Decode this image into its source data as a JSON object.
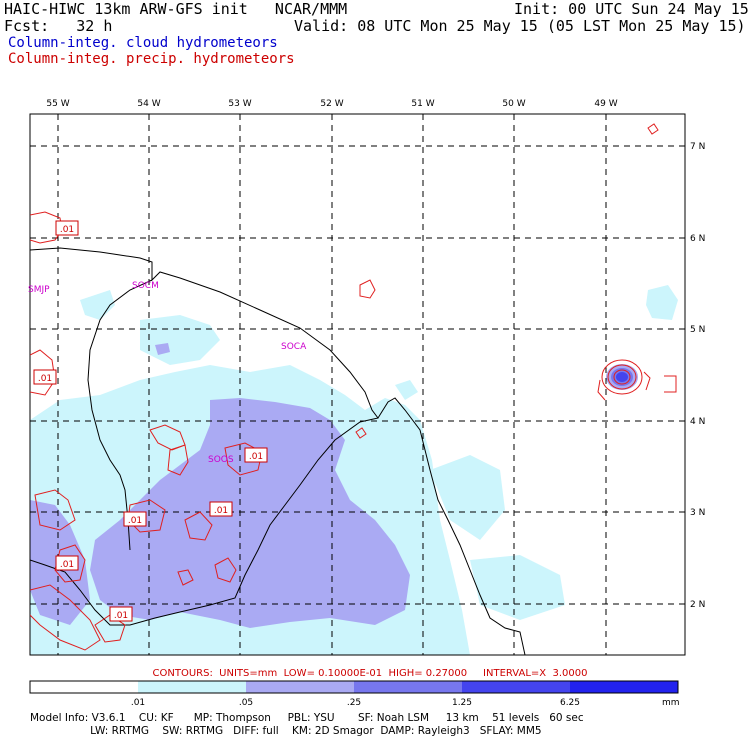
{
  "header": {
    "title": "HAIC-HIWC 13km ARW-GFS init   NCAR/MMM",
    "init": "Init: 00 UTC Sun 24 May 15",
    "fcst": "Fcst:   32 h",
    "valid": "Valid: 08 UTC Mon 25 May 15 (05 LST Mon 25 May 15)",
    "field1": "Column-integ. cloud hydrometeors",
    "field2": "Column-integ. precip. hydrometeors",
    "field1_color": "#0000cc",
    "field2_color": "#cc0000"
  },
  "map": {
    "lon_labels": [
      "55 W",
      "54 W",
      "53 W",
      "52 W",
      "51 W",
      "50 W",
      "49 W"
    ],
    "lat_labels": [
      "7 N",
      "6 N",
      "5 N",
      "4 N",
      "3 N",
      "2 N"
    ],
    "stations": [
      "SMJP",
      "SOCM",
      "SOCA",
      "SOOS"
    ],
    "contour_labels": [
      ".01",
      ".01",
      ".01",
      ".01",
      ".01",
      ".01",
      ".01"
    ],
    "shade_colors": [
      "#ffffff",
      "#ccf5fc",
      "#aaaaf3",
      "#7777ee",
      "#4444ee",
      "#2222ee"
    ]
  },
  "contours_line": "CONTOURS:  UNITS=mm  LOW= 0.10000E-01  HIGH= 0.27000     INTERVAL=X  3.0000",
  "colorbar": {
    "ticks": [
      ".01",
      ".05",
      ".25",
      "1.25",
      "6.25"
    ],
    "unit": "mm"
  },
  "footer": {
    "line1": "Model Info: V3.6.1    CU: KF      MP: Thompson     PBL: YSU       SF: Noah LSM     13 km    51 levels   60 sec",
    "line2": "                  LW: RRTMG    SW: RRTMG   DIFF: full    KM: 2D Smagor  DAMP: Rayleigh3   SFLAY: MM5"
  }
}
